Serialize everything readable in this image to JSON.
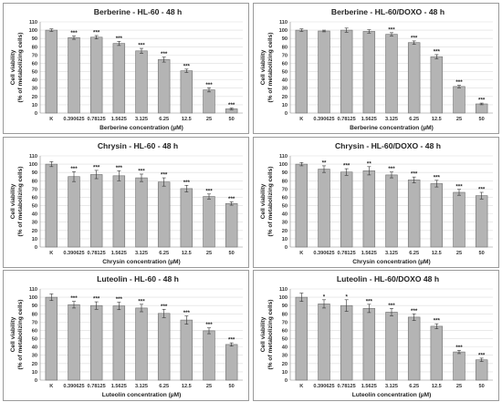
{
  "chart_data": [
    {
      "type": "bar",
      "title": "Berberine - HL-60 - 48 h",
      "xlabel": "Berberine concentration (µM)",
      "ylabel": [
        "Cell viability",
        "(% of metabolizing cells)"
      ],
      "ylim": [
        0,
        110
      ],
      "yticks": [
        0,
        10,
        20,
        30,
        40,
        50,
        60,
        70,
        80,
        90,
        100,
        110
      ],
      "categories": [
        "K",
        "0.390625",
        "0.78125",
        "1.5625",
        "3.125",
        "6.25",
        "12.5",
        "25",
        "50"
      ],
      "values": [
        100,
        91,
        91.5,
        84,
        75,
        64.5,
        51,
        28,
        5
      ],
      "errors": [
        1.5,
        2,
        2,
        2.5,
        3,
        3,
        2,
        2.5,
        1
      ],
      "significance": [
        "",
        "***",
        "***",
        "***",
        "***",
        "***",
        "***",
        "***",
        "***"
      ]
    },
    {
      "type": "bar",
      "title": "Berberine - HL-60/DOXO - 48 h",
      "xlabel": "Berberine concentration (µM)",
      "ylabel": [
        "Cell viability",
        "(% of metabolizing cells)"
      ],
      "ylim": [
        0,
        110
      ],
      "yticks": [
        0,
        10,
        20,
        30,
        40,
        50,
        60,
        70,
        80,
        90,
        100,
        110
      ],
      "categories": [
        "K",
        "0.390625",
        "0.78125",
        "1.5625",
        "3.125",
        "6.25",
        "12.5",
        "25",
        "50"
      ],
      "values": [
        100,
        99,
        100,
        98.5,
        95,
        85,
        68,
        32,
        11
      ],
      "errors": [
        1.5,
        1,
        2.5,
        2,
        2,
        2,
        2.5,
        1.5,
        1
      ],
      "significance": [
        "",
        "",
        "",
        "",
        "***",
        "***",
        "***",
        "***",
        "***"
      ]
    },
    {
      "type": "bar",
      "title": "Chrysin - HL-60 - 48 h",
      "xlabel": "Chrysin concentration (µM)",
      "ylabel": [
        "Cell viability",
        "(% of metabolizing cells)"
      ],
      "ylim": [
        0,
        110
      ],
      "yticks": [
        0,
        10,
        20,
        30,
        40,
        50,
        60,
        70,
        80,
        90,
        100,
        110
      ],
      "categories": [
        "K",
        "0.390625",
        "0.78125",
        "1.5625",
        "3.125",
        "6.25",
        "12.5",
        "25",
        "50"
      ],
      "values": [
        100,
        85,
        87.5,
        86,
        83.5,
        78.5,
        70.5,
        61,
        52.5
      ],
      "errors": [
        3,
        6,
        5,
        6,
        4.5,
        5,
        4,
        3,
        2
      ],
      "significance": [
        "",
        "***",
        "***",
        "***",
        "***",
        "***",
        "***",
        "***",
        "***"
      ]
    },
    {
      "type": "bar",
      "title": "Chrysin - HL-60/DOXO - 48 h",
      "xlabel": "Chrysin concentration (µM)",
      "ylabel": [
        "Cell viability",
        "(% of metabolizing cells)"
      ],
      "ylim": [
        0,
        110
      ],
      "yticks": [
        0,
        10,
        20,
        30,
        40,
        50,
        60,
        70,
        80,
        90,
        100,
        110
      ],
      "categories": [
        "K",
        "0.390625",
        "0.78125",
        "1.5625",
        "3.125",
        "6.25",
        "12.5",
        "25",
        "50"
      ],
      "values": [
        100,
        94,
        90.5,
        92,
        87,
        81,
        76.5,
        66,
        62
      ],
      "errors": [
        2,
        4,
        4,
        5,
        3.5,
        3.5,
        4,
        3.5,
        4
      ],
      "significance": [
        "",
        "**",
        "***",
        "**",
        "***",
        "***",
        "***",
        "***",
        "***"
      ]
    },
    {
      "type": "bar",
      "title": "Luteolin - HL-60 - 48 h",
      "xlabel": "Luteolin concentration (µM)",
      "ylabel": [
        "Cell viability",
        "(% of metabolizing cells)"
      ],
      "ylim": [
        0,
        110
      ],
      "yticks": [
        0,
        10,
        20,
        30,
        40,
        50,
        60,
        70,
        80,
        90,
        100,
        110
      ],
      "categories": [
        "K",
        "0.390625",
        "0.78125",
        "1.5625",
        "3.125",
        "6.25",
        "12.5",
        "25",
        "50"
      ],
      "values": [
        100,
        91,
        90,
        89.5,
        87,
        80.5,
        72.5,
        59.5,
        43
      ],
      "errors": [
        4,
        4,
        4.5,
        4.5,
        4.5,
        5,
        5,
        3.5,
        2
      ],
      "significance": [
        "",
        "***",
        "***",
        "***",
        "***",
        "***",
        "***",
        "***",
        "***"
      ]
    },
    {
      "type": "bar",
      "title": "Luteolin - HL-60/DOXO 48 h",
      "xlabel": "Luteolin concentration (µM)",
      "ylabel": [
        "Cell viability",
        "(% of metabolizing cells)"
      ],
      "ylim": [
        0,
        110
      ],
      "yticks": [
        0,
        10,
        20,
        30,
        40,
        50,
        60,
        70,
        80,
        90,
        100,
        110
      ],
      "categories": [
        "K",
        "0.390625",
        "0.78125",
        "1.5625",
        "3.125",
        "6.25",
        "12.5",
        "25",
        "50"
      ],
      "values": [
        100,
        92,
        90,
        86.5,
        82,
        76,
        65,
        34,
        24.5
      ],
      "errors": [
        5,
        5,
        7,
        5,
        4.5,
        4,
        3,
        2,
        2
      ],
      "significance": [
        "",
        "*",
        "*",
        "***",
        "***",
        "***",
        "***",
        "***",
        "***"
      ]
    }
  ]
}
